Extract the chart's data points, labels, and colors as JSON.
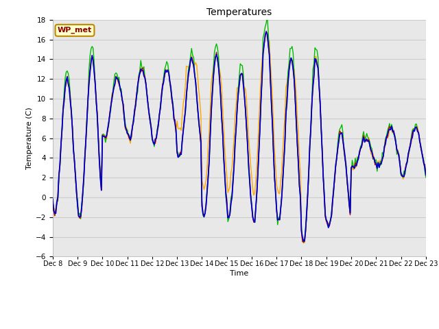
{
  "title": "Temperatures",
  "xlabel": "Time",
  "ylabel": "Temperature (C)",
  "annotation_text": "WP_met",
  "annotation_bg": "#FFFFCC",
  "annotation_border": "#BB8800",
  "annotation_text_color": "#880000",
  "ylim": [
    -6,
    18
  ],
  "xlim": [
    0,
    360
  ],
  "x_tick_labels": [
    "Dec 8",
    "Dec 9",
    "Dec 10",
    "Dec 11",
    "Dec 12",
    "Dec 13",
    "Dec 14",
    "Dec 15",
    "Dec 16",
    "Dec 17",
    "Dec 18",
    "Dec 19",
    "Dec 20",
    "Dec 21",
    "Dec 22",
    "Dec 23"
  ],
  "x_tick_positions": [
    0,
    24,
    48,
    72,
    96,
    120,
    144,
    168,
    192,
    216,
    240,
    264,
    288,
    312,
    336,
    360
  ],
  "yticks": [
    -6,
    -4,
    -2,
    0,
    2,
    4,
    6,
    8,
    10,
    12,
    14,
    16,
    18
  ],
  "grid_color": "#CCCCCC",
  "plot_bg": "#E8E8E8",
  "fig_bg": "#FFFFFF",
  "cr1000_color": "#CC0000",
  "hmp_color": "#FFA500",
  "nr01_color": "#00BB00",
  "am25t_color": "#0000CC",
  "day_max": [
    12,
    14,
    12,
    13,
    13,
    14,
    14.5,
    12.5,
    17,
    14,
    14,
    6.5,
    6,
    7,
    7,
    7.5
  ],
  "day_min": [
    -1.5,
    -2,
    6,
    6,
    5.5,
    4,
    -2,
    -2,
    -2.5,
    -2.5,
    -4.5,
    -3,
    3,
    3,
    2.5,
    2
  ]
}
